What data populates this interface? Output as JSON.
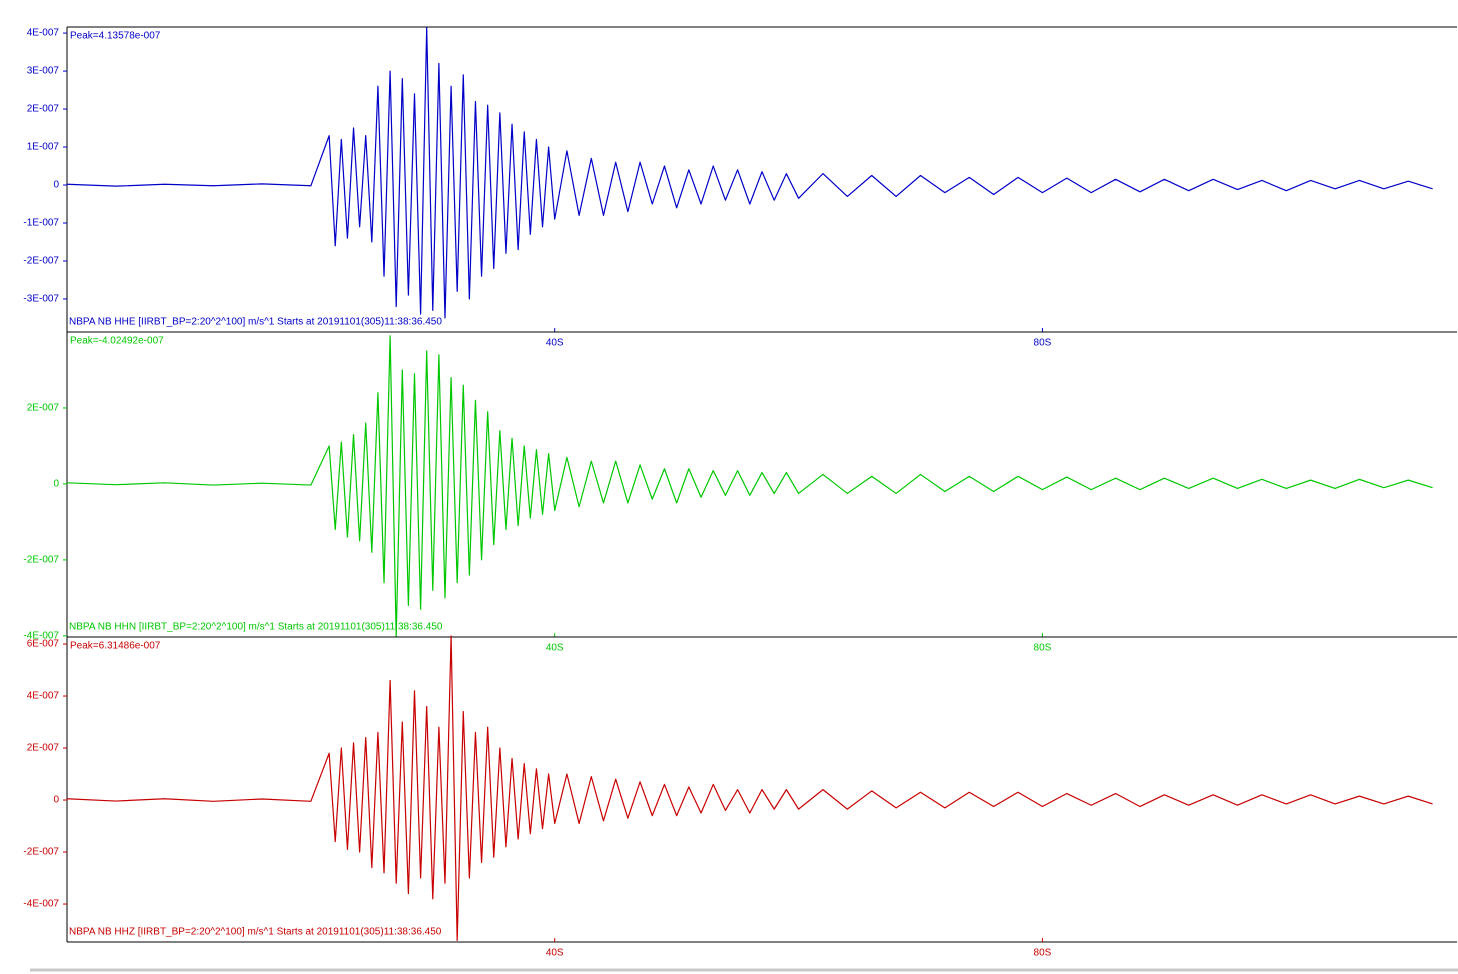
{
  "chart_data": [
    {
      "type": "line",
      "peak": "Peak=4.13578e-007",
      "caption": "NBPA NB HHE  [IIRBT_BP=2:20^2^100] m/s^1 Starts at 20191101(305)11:38:36.450",
      "x": [
        0,
        4,
        8,
        12,
        16,
        20,
        21.5,
        22,
        22.5,
        23,
        23.5,
        24,
        24.5,
        25,
        25.5,
        26,
        26.5,
        27,
        27.5,
        28,
        28.5,
        29,
        29.5,
        30,
        30.5,
        31,
        31.5,
        32,
        32.5,
        33,
        33.5,
        34,
        34.5,
        35,
        35.5,
        36,
        36.5,
        37,
        37.5,
        38,
        38.5,
        39,
        39.5,
        40,
        41,
        42,
        43,
        44,
        45,
        46,
        47,
        48,
        49,
        50,
        51,
        52,
        53,
        54,
        55,
        56,
        57,
        58,
        59,
        60,
        62,
        64,
        66,
        68,
        70,
        72,
        74,
        76,
        78,
        80,
        82,
        84,
        86,
        88,
        90,
        92,
        94,
        96,
        98,
        100,
        102,
        104,
        106,
        108,
        110,
        112
      ],
      "series": [
        {
          "color": "#0000c8",
          "values": [
            2e-09,
            -3e-09,
            2e-09,
            -2e-09,
            3e-09,
            -2e-09,
            1.3e-07,
            -1.6e-07,
            1.2e-07,
            -1.4e-07,
            1.5e-07,
            -1.1e-07,
            1.3e-07,
            -1.5e-07,
            2.6e-07,
            -2.4e-07,
            3e-07,
            -3.2e-07,
            2.8e-07,
            -2.9e-07,
            2.4e-07,
            -3.4e-07,
            4.14e-07,
            -3.3e-07,
            3.2e-07,
            -3.5e-07,
            2.6e-07,
            -2.8e-07,
            2.9e-07,
            -3e-07,
            2.2e-07,
            -2.4e-07,
            2.1e-07,
            -2.2e-07,
            1.9e-07,
            -1.8e-07,
            1.6e-07,
            -1.7e-07,
            1.4e-07,
            -1.3e-07,
            1.2e-07,
            -1.1e-07,
            1e-07,
            -9e-08,
            9e-08,
            -8e-08,
            7e-08,
            -8e-08,
            6e-08,
            -7e-08,
            6e-08,
            -5e-08,
            5e-08,
            -6e-08,
            4e-08,
            -5e-08,
            5e-08,
            -4e-08,
            4e-08,
            -5e-08,
            3.5e-08,
            -4e-08,
            3e-08,
            -3.5e-08,
            3e-08,
            -3e-08,
            2.5e-08,
            -3e-08,
            2.5e-08,
            -2e-08,
            2e-08,
            -2.5e-08,
            2e-08,
            -2e-08,
            1.8e-08,
            -2e-08,
            1.5e-08,
            -1.8e-08,
            1.5e-08,
            -1.5e-08,
            1.5e-08,
            -1.2e-08,
            1.2e-08,
            -1.5e-08,
            1.2e-08,
            -1e-08,
            1.2e-08,
            -1e-08,
            1e-08,
            -1e-08
          ]
        }
      ],
      "xlim": [
        0,
        114
      ],
      "ylim": [
        -3.87e-07,
        4.16e-07
      ],
      "xticks": [
        {
          "value": 40,
          "label": "40S"
        },
        {
          "value": 80,
          "label": "80S"
        }
      ],
      "yticks": [
        {
          "value": 4e-07,
          "label": "4E-007"
        },
        {
          "value": 3e-07,
          "label": "3E-007"
        },
        {
          "value": 2e-07,
          "label": "2E-007"
        },
        {
          "value": 1e-07,
          "label": "1E-007"
        },
        0,
        {
          "value": -1e-07,
          "label": "-1E-007"
        },
        {
          "value": -2e-07,
          "label": "-2E-007"
        },
        {
          "value": -3e-07,
          "label": "-3E-007"
        }
      ]
    },
    {
      "type": "line",
      "peak": "Peak=-4.02492e-007",
      "caption": "NBPA NB HHN  [IIRBT_BP=2:20^2^100] m/s^1 Starts at 20191101(305)11:38:36.450",
      "x": [
        0,
        4,
        8,
        12,
        16,
        20,
        21.5,
        22,
        22.5,
        23,
        23.5,
        24,
        24.5,
        25,
        25.5,
        26,
        26.5,
        27,
        27.5,
        28,
        28.5,
        29,
        29.5,
        30,
        30.5,
        31,
        31.5,
        32,
        32.5,
        33,
        33.5,
        34,
        34.5,
        35,
        35.5,
        36,
        36.5,
        37,
        37.5,
        38,
        38.5,
        39,
        39.5,
        40,
        41,
        42,
        43,
        44,
        45,
        46,
        47,
        48,
        49,
        50,
        51,
        52,
        53,
        54,
        55,
        56,
        57,
        58,
        59,
        60,
        62,
        64,
        66,
        68,
        70,
        72,
        74,
        76,
        78,
        80,
        82,
        84,
        86,
        88,
        90,
        92,
        94,
        96,
        98,
        100,
        102,
        104,
        106,
        108,
        110,
        112
      ],
      "series": [
        {
          "color": "#00c800",
          "values": [
            3e-09,
            -2e-09,
            3e-09,
            -3e-09,
            2e-09,
            -3e-09,
            1e-07,
            -1.2e-07,
            1.1e-07,
            -1.4e-07,
            1.3e-07,
            -1.5e-07,
            1.6e-07,
            -1.8e-07,
            2.4e-07,
            -2.6e-07,
            3.9e-07,
            -4.02e-07,
            3e-07,
            -3.2e-07,
            2.9e-07,
            -3.3e-07,
            3.5e-07,
            -2.8e-07,
            3.4e-07,
            -3e-07,
            2.8e-07,
            -2.6e-07,
            2.6e-07,
            -2.4e-07,
            2.2e-07,
            -2e-07,
            1.9e-07,
            -1.6e-07,
            1.4e-07,
            -1.2e-07,
            1.2e-07,
            -1.1e-07,
            1e-07,
            -9e-08,
            9e-08,
            -8e-08,
            8e-08,
            -7e-08,
            7e-08,
            -6e-08,
            6e-08,
            -5e-08,
            6e-08,
            -5e-08,
            5e-08,
            -4e-08,
            4e-08,
            -5e-08,
            4e-08,
            -3.5e-08,
            3.5e-08,
            -3e-08,
            3.5e-08,
            -3e-08,
            3e-08,
            -2.5e-08,
            3e-08,
            -2.5e-08,
            2.5e-08,
            -2.5e-08,
            2e-08,
            -2.5e-08,
            2.5e-08,
            -2e-08,
            2e-08,
            -2e-08,
            2e-08,
            -1.5e-08,
            1.8e-08,
            -1.5e-08,
            1.5e-08,
            -1.5e-08,
            1.5e-08,
            -1.2e-08,
            1.5e-08,
            -1.2e-08,
            1.2e-08,
            -1.2e-08,
            1e-08,
            -1.2e-08,
            1.2e-08,
            -1e-08,
            1e-08,
            -1e-08
          ]
        }
      ],
      "xlim": [
        0,
        114
      ],
      "ylim": [
        -4.03e-07,
        4e-07
      ],
      "xticks": [
        {
          "value": 40,
          "label": "40S"
        },
        {
          "value": 80,
          "label": "80S"
        }
      ],
      "yticks": [
        {
          "value": 2e-07,
          "label": "2E-007"
        },
        0,
        {
          "value": -2e-07,
          "label": "-2E-007"
        },
        {
          "value": -4e-07,
          "label": "-4E-007"
        }
      ]
    },
    {
      "type": "line",
      "peak": "Peak=6.31486e-007",
      "caption": "NBPA NB HHZ  [IIRBT_BP=2:20^2^100] m/s^1 Starts at 20191101(305)11:38:36.450",
      "x": [
        0,
        4,
        8,
        12,
        16,
        20,
        21.5,
        22,
        22.5,
        23,
        23.5,
        24,
        24.5,
        25,
        25.5,
        26,
        26.5,
        27,
        27.5,
        28,
        28.5,
        29,
        29.5,
        30,
        30.5,
        31,
        31.5,
        32,
        32.5,
        33,
        33.5,
        34,
        34.5,
        35,
        35.5,
        36,
        36.5,
        37,
        37.5,
        38,
        38.5,
        39,
        39.5,
        40,
        41,
        42,
        43,
        44,
        45,
        46,
        47,
        48,
        49,
        50,
        51,
        52,
        53,
        54,
        55,
        56,
        57,
        58,
        59,
        60,
        62,
        64,
        66,
        68,
        70,
        72,
        74,
        76,
        78,
        80,
        82,
        84,
        86,
        88,
        90,
        92,
        94,
        96,
        98,
        100,
        102,
        104,
        106,
        108,
        110,
        112
      ],
      "series": [
        {
          "color": "#c80000",
          "values": [
            5e-09,
            -4e-09,
            5e-09,
            -5e-09,
            4e-09,
            -5e-09,
            1.8e-07,
            -1.6e-07,
            2e-07,
            -1.9e-07,
            2.2e-07,
            -2e-07,
            2.4e-07,
            -2.6e-07,
            2.6e-07,
            -2.8e-07,
            4.6e-07,
            -3.2e-07,
            3e-07,
            -3.6e-07,
            4.2e-07,
            -3e-07,
            3.6e-07,
            -3.8e-07,
            2.8e-07,
            -3.2e-07,
            6.31e-07,
            -5.4e-07,
            3.4e-07,
            -3e-07,
            2.6e-07,
            -2.4e-07,
            2.8e-07,
            -2.2e-07,
            2e-07,
            -1.8e-07,
            1.6e-07,
            -1.5e-07,
            1.4e-07,
            -1.3e-07,
            1.2e-07,
            -1.1e-07,
            1e-07,
            -9e-08,
            1e-07,
            -9e-08,
            9e-08,
            -8e-08,
            8e-08,
            -7e-08,
            7e-08,
            -6e-08,
            6e-08,
            -6e-08,
            5e-08,
            -5e-08,
            6e-08,
            -4e-08,
            4e-08,
            -5e-08,
            4e-08,
            -3.5e-08,
            4e-08,
            -3.5e-08,
            4e-08,
            -3.5e-08,
            3.5e-08,
            -3e-08,
            3e-08,
            -3e-08,
            3e-08,
            -2.5e-08,
            3e-08,
            -2.5e-08,
            2.5e-08,
            -2e-08,
            2.5e-08,
            -2.5e-08,
            2e-08,
            -2e-08,
            2e-08,
            -2e-08,
            2e-08,
            -1.5e-08,
            2e-08,
            -1.5e-08,
            1.5e-08,
            -1.5e-08,
            1.5e-08,
            -1.5e-08
          ]
        }
      ],
      "xlim": [
        0,
        114
      ],
      "ylim": [
        -5.46e-07,
        6.27e-07
      ],
      "xticks": [
        {
          "value": 40,
          "label": "40S"
        },
        {
          "value": 80,
          "label": "80S"
        }
      ],
      "yticks": [
        {
          "value": 6e-07,
          "label": "6E-007"
        },
        {
          "value": 4e-07,
          "label": "4E-007"
        },
        {
          "value": 2e-07,
          "label": "2E-007"
        },
        0,
        {
          "value": -2e-07,
          "label": "-2E-007"
        },
        {
          "value": -4e-07,
          "label": "-4E-007"
        }
      ]
    }
  ]
}
